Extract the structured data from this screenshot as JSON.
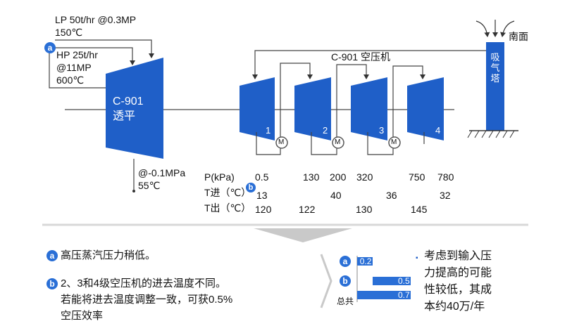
{
  "colors": {
    "accent": "#1f5fc8",
    "badge": "#2a6fd6",
    "line": "#555555"
  },
  "steam": {
    "lp_line1": "LP 50t/hr @0.3MP",
    "lp_line2": "150℃",
    "hp_line1": "HP 25t/hr",
    "hp_line2": "@11MP",
    "hp_line3": "600℃",
    "exhaust_line1": "@-0.1MPa",
    "exhaust_line2": "55℃"
  },
  "turbine": {
    "name": "C-901",
    "type": "透平"
  },
  "compressor": {
    "title": "C-901 空压机",
    "stages": [
      "1",
      "2",
      "3",
      "4"
    ],
    "motor_symbol": "M"
  },
  "tower": {
    "label": "吸气塔",
    "side_label": "南面"
  },
  "conditions": {
    "p_label": "P(kPa)",
    "tin_label": "T进（℃）",
    "tout_label": "T出（℃）",
    "p_values": [
      "0.5",
      "130",
      "200",
      "320",
      "750",
      "780"
    ],
    "tin_values": [
      "13",
      "40",
      "36",
      "32"
    ],
    "tout_values": [
      "120",
      "122",
      "130",
      "145"
    ]
  },
  "badges": {
    "a": "a",
    "b": "b"
  },
  "notes": {
    "a_text": "高压蒸汽压力稍低。",
    "b_line1": "2、3和4级空压机的进去温度不同。",
    "b_line2": "若能将进去温度调整一致，可获0.5%",
    "b_line3": "空压效率"
  },
  "impact_chart": {
    "bars": [
      {
        "label": "a",
        "value": 0.2,
        "value_label": "0.2"
      },
      {
        "label": "b",
        "value": 0.5,
        "value_label": "0.5"
      },
      {
        "label": "总共",
        "value": 0.7,
        "value_label": "0.7"
      }
    ],
    "max": 0.7
  },
  "summary": {
    "bullet": "▪",
    "line1": "考虑到输入压",
    "line2": "力提高的可能",
    "line3": "性较低，其成",
    "line4": "本约40万/年"
  }
}
